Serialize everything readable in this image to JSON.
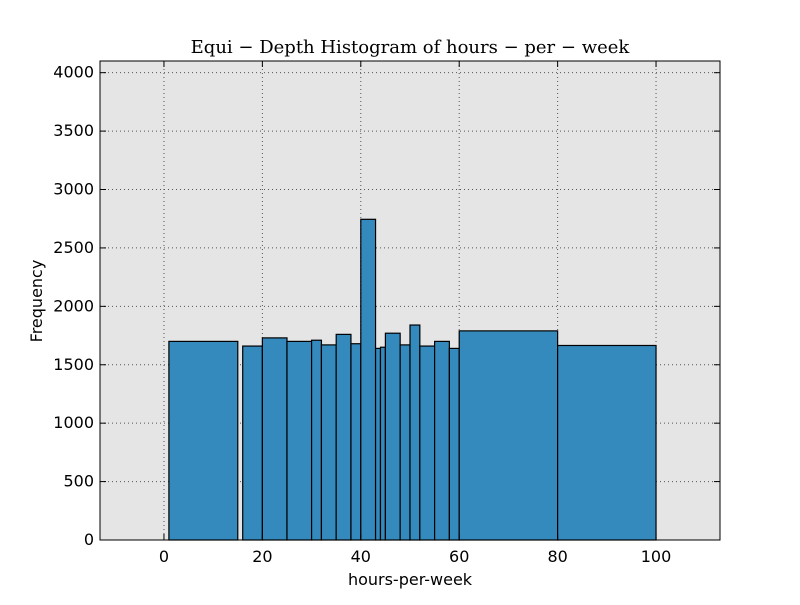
{
  "chart_data": {
    "type": "bar",
    "title": "Equi − Depth Histogram of hours − per − week",
    "xlabel": "hours-per-week",
    "ylabel": "Frequency",
    "xlim": [
      -13,
      113
    ],
    "ylim": [
      0,
      4100
    ],
    "x_ticks": [
      0,
      20,
      40,
      60,
      80,
      100
    ],
    "y_ticks": [
      0,
      500,
      1000,
      1500,
      2000,
      2500,
      3000,
      3500,
      4000
    ],
    "grid": true,
    "colors": {
      "background": "#e5e5e5",
      "bar_fill": "#348abd",
      "bar_edge": "#000000",
      "grid": "#555555"
    },
    "bins": [
      {
        "x0": 1,
        "x1": 15,
        "value": 1700
      },
      {
        "x0": 16,
        "x1": 20,
        "value": 1660
      },
      {
        "x0": 20,
        "x1": 25,
        "value": 1730
      },
      {
        "x0": 25,
        "x1": 30,
        "value": 1700
      },
      {
        "x0": 30,
        "x1": 32,
        "value": 1710
      },
      {
        "x0": 32,
        "x1": 35,
        "value": 1670
      },
      {
        "x0": 35,
        "x1": 38,
        "value": 1760
      },
      {
        "x0": 38,
        "x1": 40,
        "value": 1680
      },
      {
        "x0": 40,
        "x1": 43,
        "value": 2745
      },
      {
        "x0": 43,
        "x1": 44,
        "value": 1640
      },
      {
        "x0": 44,
        "x1": 45,
        "value": 1650
      },
      {
        "x0": 45,
        "x1": 48,
        "value": 1770
      },
      {
        "x0": 48,
        "x1": 50,
        "value": 1670
      },
      {
        "x0": 50,
        "x1": 52,
        "value": 1840
      },
      {
        "x0": 52,
        "x1": 55,
        "value": 1660
      },
      {
        "x0": 55,
        "x1": 58,
        "value": 1700
      },
      {
        "x0": 58,
        "x1": 60,
        "value": 1640
      },
      {
        "x0": 60,
        "x1": 80,
        "value": 1790
      },
      {
        "x0": 80,
        "x1": 100,
        "value": 1665
      }
    ]
  }
}
